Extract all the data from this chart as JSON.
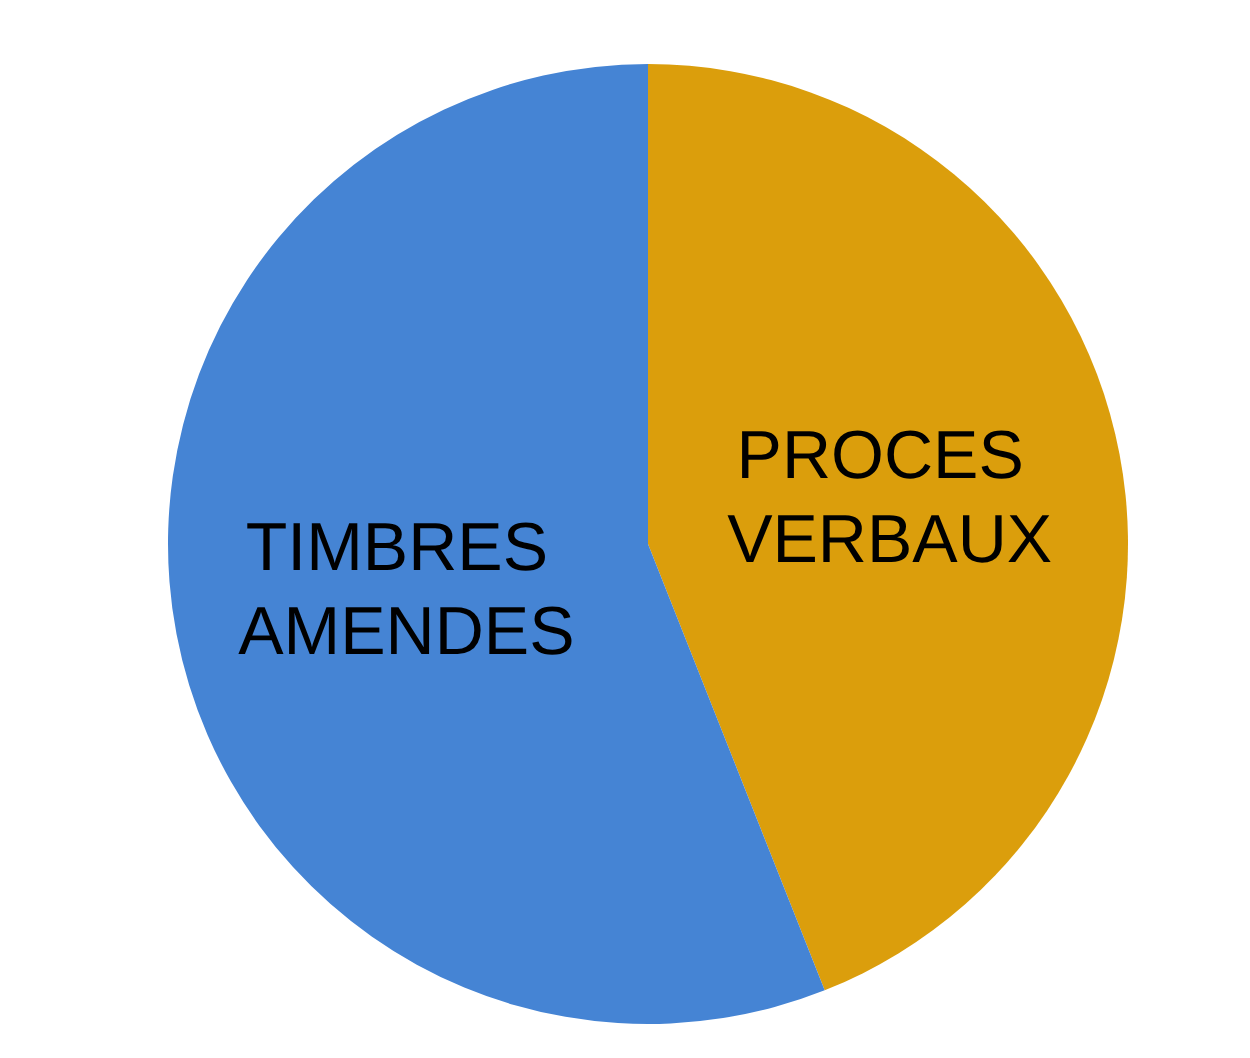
{
  "chart_data": {
    "type": "pie",
    "categories": [
      "PROCES VERBAUX",
      "TIMBRES AMENDES"
    ],
    "values": [
      44,
      56
    ],
    "colors": [
      "#db9e0c",
      "#4584d4"
    ]
  }
}
